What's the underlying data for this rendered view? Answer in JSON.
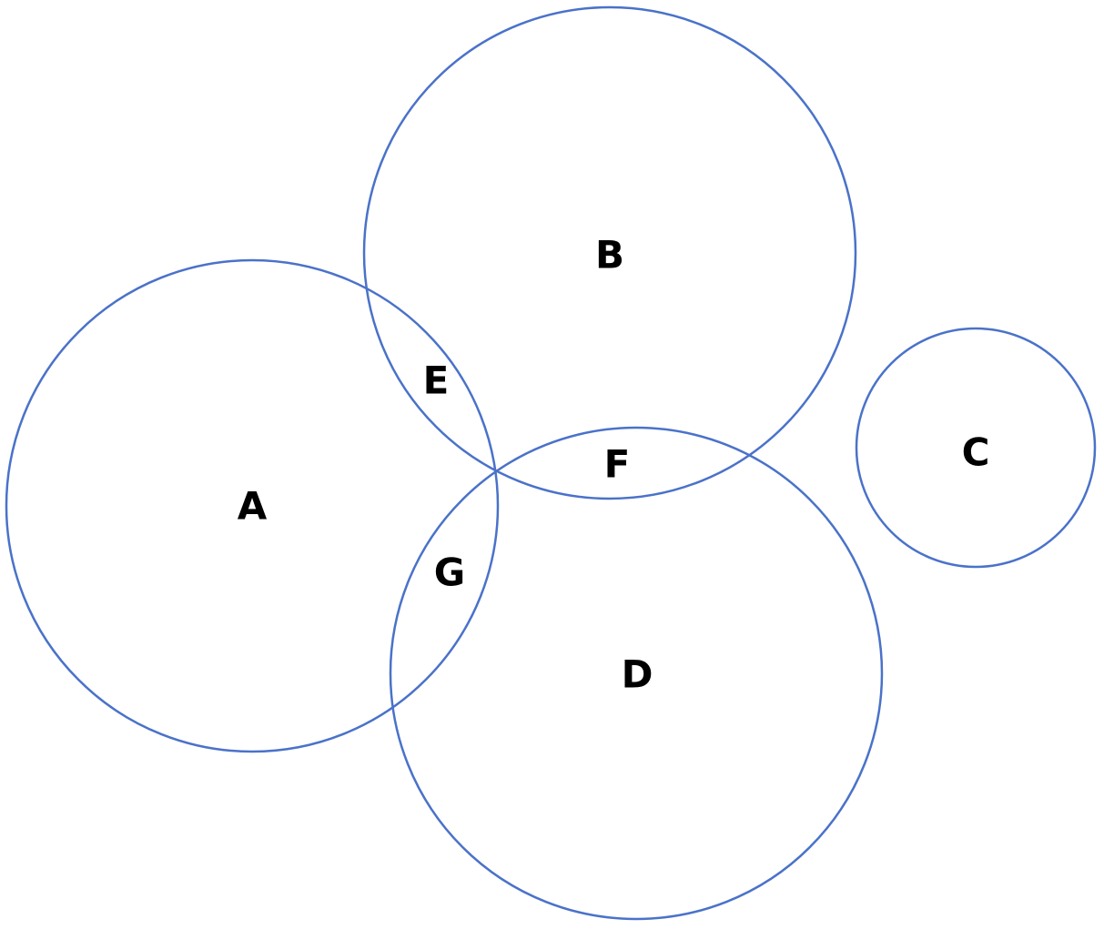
{
  "diagram": {
    "type": "venn",
    "stroke_color": "#4a72c9",
    "text_color": "#000000",
    "sets": [
      {
        "id": "A",
        "label": "A"
      },
      {
        "id": "B",
        "label": "B"
      },
      {
        "id": "C",
        "label": "C"
      },
      {
        "id": "D",
        "label": "D"
      }
    ],
    "intersections": [
      {
        "label": "E",
        "sets": [
          "A",
          "B"
        ]
      },
      {
        "label": "F",
        "sets": [
          "B",
          "D"
        ]
      },
      {
        "label": "G",
        "sets": [
          "A",
          "D"
        ]
      }
    ]
  }
}
